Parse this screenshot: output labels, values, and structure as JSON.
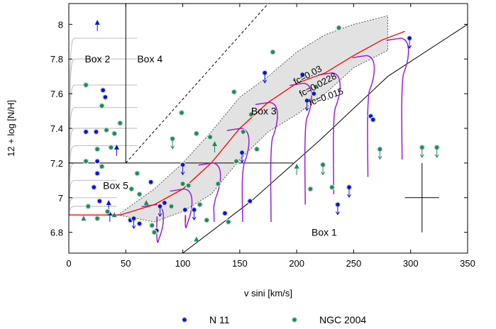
{
  "chart_data": {
    "type": "scatter",
    "xlabel": "v sini [km/s]",
    "ylabel": "12 + log [N/H]",
    "xlim": [
      0,
      350
    ],
    "ylim": [
      6.68,
      8.12
    ],
    "x_ticks": [
      0,
      50,
      100,
      150,
      200,
      250,
      300,
      350
    ],
    "y_ticks": [
      6.8,
      7,
      7.2,
      7.4,
      7.6,
      7.8,
      8
    ],
    "grid": false,
    "legend_position": "bottom",
    "colors": {
      "n11": "#1010d8",
      "ngc2004": "#1f8a5a",
      "model": "#ff0000",
      "tracks": "#9a1fd0",
      "band": "#e2e2e2",
      "isochrones": "#b4b4b4"
    },
    "series": [
      {
        "name": "N 11",
        "points": [
          {
            "x": 25,
            "y": 8.01,
            "m": "up"
          },
          {
            "x": 15,
            "y": 7.38,
            "m": "c"
          },
          {
            "x": 24,
            "y": 7.38,
            "m": "c"
          },
          {
            "x": 25,
            "y": 7.21,
            "m": "c"
          },
          {
            "x": 25,
            "y": 7.14,
            "m": "c"
          },
          {
            "x": 30,
            "y": 7.62,
            "m": "c"
          },
          {
            "x": 32,
            "y": 7.58,
            "m": "c"
          },
          {
            "x": 42,
            "y": 7.29,
            "m": "up"
          },
          {
            "x": 22,
            "y": 7.06,
            "m": "c"
          },
          {
            "x": 27,
            "y": 6.98,
            "m": "c"
          },
          {
            "x": 35,
            "y": 6.97,
            "m": "up"
          },
          {
            "x": 36,
            "y": 6.91,
            "m": "up"
          },
          {
            "x": 54,
            "y": 6.87,
            "m": "c"
          },
          {
            "x": 57,
            "y": 6.88,
            "m": "dn"
          },
          {
            "x": 62,
            "y": 6.85,
            "m": "c"
          },
          {
            "x": 72,
            "y": 7.09,
            "m": "c"
          },
          {
            "x": 77,
            "y": 6.81,
            "m": "c"
          },
          {
            "x": 80,
            "y": 6.95,
            "m": "dn"
          },
          {
            "x": 84,
            "y": 6.97,
            "m": "c"
          },
          {
            "x": 100,
            "y": 7.19,
            "m": "dn"
          },
          {
            "x": 102,
            "y": 6.93,
            "m": "c"
          },
          {
            "x": 110,
            "y": 6.93,
            "m": "dn"
          },
          {
            "x": 137,
            "y": 6.91,
            "m": "c"
          },
          {
            "x": 152,
            "y": 7.26,
            "m": "dn"
          },
          {
            "x": 159,
            "y": 6.98,
            "m": "c"
          },
          {
            "x": 172,
            "y": 7.72,
            "m": "dn"
          },
          {
            "x": 205,
            "y": 7.71,
            "m": "c"
          },
          {
            "x": 209,
            "y": 7.56,
            "m": "dn"
          },
          {
            "x": 215,
            "y": 7.6,
            "m": "c"
          },
          {
            "x": 236,
            "y": 6.96,
            "m": "dn"
          },
          {
            "x": 246,
            "y": 7.06,
            "m": "dn"
          },
          {
            "x": 265,
            "y": 7.47,
            "m": "c"
          },
          {
            "x": 267,
            "y": 7.45,
            "m": "c"
          },
          {
            "x": 299,
            "y": 7.92,
            "m": "dn"
          }
        ]
      },
      {
        "name": "NGC 2004",
        "points": [
          {
            "x": 15,
            "y": 7.65,
            "m": "c"
          },
          {
            "x": 29,
            "y": 7.53,
            "m": "c"
          },
          {
            "x": 33,
            "y": 7.39,
            "m": "c"
          },
          {
            "x": 40,
            "y": 7.37,
            "m": "c"
          },
          {
            "x": 45,
            "y": 7.43,
            "m": "c"
          },
          {
            "x": 37,
            "y": 7.29,
            "m": "c"
          },
          {
            "x": 25,
            "y": 7.28,
            "m": "c"
          },
          {
            "x": 15,
            "y": 7.21,
            "m": "c"
          },
          {
            "x": 29,
            "y": 7.18,
            "m": "c"
          },
          {
            "x": 17,
            "y": 6.95,
            "m": "c"
          },
          {
            "x": 13,
            "y": 6.88,
            "m": "tri"
          },
          {
            "x": 25,
            "y": 6.88,
            "m": "c"
          },
          {
            "x": 34,
            "y": 6.92,
            "m": "c"
          },
          {
            "x": 40,
            "y": 6.9,
            "m": "tri"
          },
          {
            "x": 55,
            "y": 7.05,
            "m": "c"
          },
          {
            "x": 60,
            "y": 7.14,
            "m": "c"
          },
          {
            "x": 62,
            "y": 7.02,
            "m": "c"
          },
          {
            "x": 68,
            "y": 6.97,
            "m": "tri"
          },
          {
            "x": 73,
            "y": 6.84,
            "m": "c"
          },
          {
            "x": 75,
            "y": 6.8,
            "m": "c"
          },
          {
            "x": 91,
            "y": 7.34,
            "m": "dn"
          },
          {
            "x": 90,
            "y": 6.95,
            "m": "c"
          },
          {
            "x": 99,
            "y": 7.49,
            "m": "c"
          },
          {
            "x": 100,
            "y": 7.08,
            "m": "c"
          },
          {
            "x": 105,
            "y": 7.07,
            "m": "c"
          },
          {
            "x": 112,
            "y": 7.37,
            "m": "c"
          },
          {
            "x": 115,
            "y": 6.96,
            "m": "c"
          },
          {
            "x": 121,
            "y": 6.87,
            "m": "c"
          },
          {
            "x": 124,
            "y": 7.35,
            "m": "c"
          },
          {
            "x": 128,
            "y": 7.31,
            "m": "up"
          },
          {
            "x": 131,
            "y": 7.08,
            "m": "c"
          },
          {
            "x": 140,
            "y": 6.86,
            "m": "c"
          },
          {
            "x": 145,
            "y": 7.61,
            "m": "c"
          },
          {
            "x": 147,
            "y": 7.21,
            "m": "c"
          },
          {
            "x": 153,
            "y": 7.38,
            "m": "c"
          },
          {
            "x": 160,
            "y": 7.48,
            "m": "c"
          },
          {
            "x": 165,
            "y": 7.28,
            "m": "c"
          },
          {
            "x": 112,
            "y": 6.76,
            "m": "tri"
          },
          {
            "x": 179,
            "y": 7.84,
            "m": "c"
          },
          {
            "x": 200,
            "y": 7.18,
            "m": "up"
          },
          {
            "x": 212,
            "y": 7.05,
            "m": "c"
          },
          {
            "x": 217,
            "y": 7.64,
            "m": "c"
          },
          {
            "x": 223,
            "y": 7.19,
            "m": "dn"
          },
          {
            "x": 231,
            "y": 7.06,
            "m": "c"
          },
          {
            "x": 237,
            "y": 7.98,
            "m": "c"
          },
          {
            "x": 273,
            "y": 7.28,
            "m": "dn"
          },
          {
            "x": 310,
            "y": 7.29,
            "m": "dn"
          },
          {
            "x": 323,
            "y": 7.29,
            "m": "dn"
          }
        ]
      }
    ],
    "model_curve": [
      [
        0,
        6.9
      ],
      [
        45,
        6.9
      ],
      [
        75,
        6.96
      ],
      [
        100,
        7.05
      ],
      [
        125,
        7.2
      ],
      [
        150,
        7.4
      ],
      [
        175,
        7.55
      ],
      [
        200,
        7.66
      ],
      [
        225,
        7.72
      ],
      [
        250,
        7.82
      ],
      [
        275,
        7.91
      ],
      [
        295,
        7.96
      ]
    ],
    "band_upper": [
      [
        43,
        6.9
      ],
      [
        75,
        7.05
      ],
      [
        100,
        7.2
      ],
      [
        125,
        7.38
      ],
      [
        150,
        7.58
      ],
      [
        175,
        7.7
      ],
      [
        200,
        7.84
      ],
      [
        225,
        7.94
      ],
      [
        250,
        8.0
      ],
      [
        280,
        8.05
      ]
    ],
    "band_lower": [
      [
        280,
        7.85
      ],
      [
        250,
        7.75
      ],
      [
        225,
        7.6
      ],
      [
        200,
        7.48
      ],
      [
        175,
        7.38
      ],
      [
        150,
        7.22
      ],
      [
        125,
        7.02
      ],
      [
        100,
        6.92
      ],
      [
        75,
        6.86
      ],
      [
        43,
        6.9
      ]
    ],
    "boundaries": {
      "vertical_line_x": 50,
      "horizontal_line_y": 7.2,
      "horizontal_line_xmax": 197,
      "dashed_line": [
        [
          50,
          7.2
        ],
        [
          175,
          8.12
        ]
      ],
      "box1_curve": [
        [
          100,
          6.68
        ],
        [
          160,
          6.98
        ],
        [
          220,
          7.33
        ],
        [
          280,
          7.7
        ],
        [
          350,
          8.0
        ]
      ]
    },
    "isochrone_levels": [
      6.95,
      7.0,
      7.1,
      7.2,
      7.3,
      7.4,
      7.52,
      7.65,
      7.8,
      7.92
    ],
    "tracks": [
      {
        "x0": 75,
        "y0": 6.96
      },
      {
        "x0": 100,
        "y0": 7.05
      },
      {
        "x0": 125,
        "y0": 7.2
      },
      {
        "x0": 150,
        "y0": 7.4
      },
      {
        "x0": 175,
        "y0": 7.55
      },
      {
        "x0": 205,
        "y0": 7.66
      },
      {
        "x0": 230,
        "y0": 7.72
      },
      {
        "x0": 260,
        "y0": 7.82
      },
      {
        "x0": 290,
        "y0": 7.92
      }
    ],
    "error_bar": {
      "x": 310,
      "y": 7.0,
      "dx": 15,
      "dy": 0.2
    },
    "box_labels": [
      {
        "text": "Box 1",
        "x": 213,
        "y": 6.8
      },
      {
        "text": "Box 2",
        "x": 14,
        "y": 7.8
      },
      {
        "text": "Box 3",
        "x": 160,
        "y": 7.5
      },
      {
        "text": "Box 4",
        "x": 60,
        "y": 7.8
      },
      {
        "text": "Box 5",
        "x": 30,
        "y": 7.07
      }
    ],
    "fc_labels": [
      {
        "text": "fc=0.03",
        "x": 199,
        "y": 7.65,
        "angle": -28
      },
      {
        "text": "fc=0.0228",
        "x": 204,
        "y": 7.58,
        "angle": -28
      },
      {
        "text": "fc=0.015",
        "x": 212,
        "y": 7.53,
        "angle": -20
      }
    ]
  }
}
